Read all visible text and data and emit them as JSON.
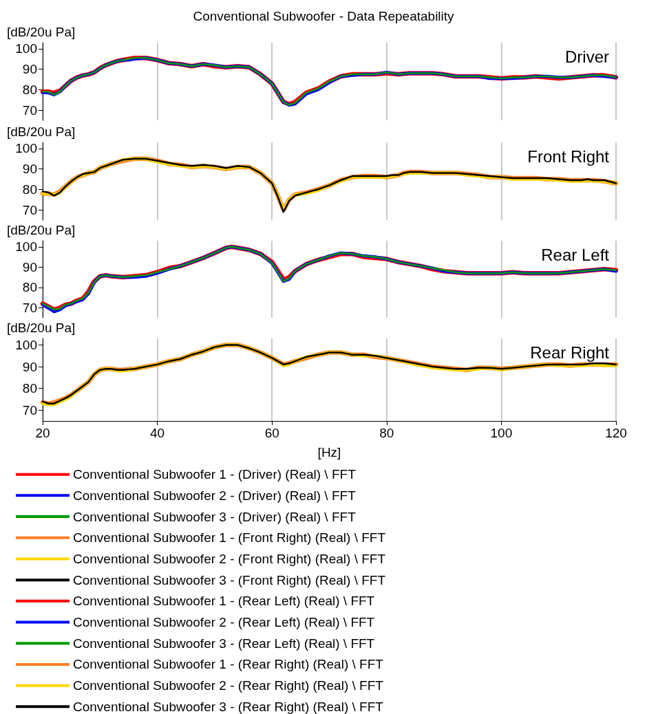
{
  "chart_data": [
    {
      "type": "line",
      "title": "Conventional Subwoofer - Data Repeatability",
      "ylabel": "[dB/20u Pa]",
      "annotations": [
        "Driver"
      ],
      "xlim": [
        20,
        120
      ],
      "xticks": [
        20,
        40,
        60,
        80,
        100,
        120
      ],
      "ylim": [
        65,
        103
      ],
      "yticks": [
        70,
        80,
        90,
        100
      ],
      "grid": "x",
      "legend": "bottom",
      "tick_labels": "y",
      "x": [
        20,
        21,
        22,
        23,
        24,
        25,
        26,
        27,
        28,
        29,
        30,
        31,
        32,
        33,
        34,
        35,
        36,
        38,
        40,
        42,
        44,
        46,
        48,
        50,
        52,
        54,
        56,
        58,
        60,
        62,
        63,
        64,
        66,
        68,
        70,
        72,
        74,
        76,
        78,
        80,
        82,
        84,
        86,
        88,
        90,
        92,
        94,
        96,
        98,
        100,
        102,
        104,
        106,
        108,
        110,
        112,
        114,
        116,
        118,
        120
      ],
      "series": [
        {
          "name": "Conventional Subwoofer 1 - (Driver) (Real) \\ FFT",
          "color": "#ff0000",
          "values": [
            79,
            79,
            78.5,
            79.5,
            82,
            84.5,
            86,
            87,
            87.5,
            88.5,
            90.5,
            92,
            93,
            94,
            94.5,
            95,
            95.5,
            95.5,
            94.5,
            93,
            92.5,
            91.5,
            92.5,
            91.5,
            91,
            91.5,
            91,
            87.5,
            83,
            74,
            73,
            74,
            78.5,
            80.5,
            84,
            86.5,
            87.5,
            87.5,
            87.5,
            88,
            87.5,
            88,
            88,
            88,
            87.5,
            86.5,
            86.5,
            86.5,
            86,
            85.5,
            86,
            86,
            86.5,
            86,
            85.5,
            86,
            86.5,
            87,
            87,
            86
          ]
        },
        {
          "name": "Conventional Subwoofer 2 - (Driver) (Real) \\ FFT",
          "color": "#0000ff",
          "values": [
            78.5,
            78.5,
            77.5,
            79,
            82,
            84.5,
            86,
            87,
            87.5,
            88.5,
            90.5,
            92,
            93,
            94,
            94.5,
            94.5,
            95,
            95.5,
            94.5,
            93,
            92.5,
            91.5,
            92.5,
            92,
            91,
            91.5,
            91,
            87.5,
            83,
            74,
            72.5,
            73,
            78,
            80,
            83.5,
            86.5,
            87,
            87.5,
            87.5,
            88.5,
            87.5,
            88,
            88,
            88,
            87.5,
            86.5,
            86.5,
            86.5,
            85.5,
            85.5,
            85.5,
            86,
            86.5,
            86.5,
            86,
            86,
            86.5,
            87,
            86.5,
            86
          ]
        },
        {
          "name": "Conventional Subwoofer 3 - (Driver) (Real) \\ FFT",
          "color": "#009a00",
          "values": [
            79,
            79,
            77.5,
            79,
            82,
            84.5,
            86,
            87,
            87.5,
            88.5,
            90.5,
            92,
            93,
            94,
            94.5,
            95,
            95.5,
            95.5,
            94.5,
            93,
            92.5,
            91.5,
            92.5,
            92,
            91,
            91.5,
            91,
            87.5,
            83,
            74,
            72.5,
            73.5,
            78.5,
            80.5,
            84,
            86.5,
            87.5,
            87.5,
            87.5,
            88.5,
            87.5,
            88,
            88,
            88,
            87.5,
            86.5,
            86.5,
            86.5,
            86,
            85.5,
            86,
            86,
            86.5,
            86.5,
            86,
            86,
            86.5,
            87,
            87,
            86
          ]
        }
      ]
    },
    {
      "type": "line",
      "ylabel": "[dB/20u Pa]",
      "annotations": [
        "Front Right"
      ],
      "xlim": [
        20,
        120
      ],
      "xticks": [
        20,
        40,
        60,
        80,
        100,
        120
      ],
      "ylim": [
        65,
        103
      ],
      "yticks": [
        70,
        80,
        90,
        100
      ],
      "grid": "x",
      "legend": "bottom",
      "tick_labels": "y",
      "x": [
        20,
        21,
        22,
        23,
        24,
        25,
        26,
        27,
        28,
        29,
        30,
        32,
        34,
        36,
        38,
        40,
        42,
        44,
        46,
        48,
        50,
        52,
        54,
        56,
        58,
        60,
        61,
        62,
        63,
        64,
        66,
        68,
        70,
        72,
        74,
        76,
        78,
        80,
        81,
        82,
        83,
        84,
        86,
        88,
        90,
        92,
        94,
        96,
        98,
        100,
        102,
        104,
        106,
        108,
        110,
        112,
        114,
        115,
        116,
        118,
        120
      ],
      "series": [
        {
          "name": "Conventional Subwoofer 1 - (Front Right) (Real) \\ FFT",
          "color": "#ff7f27",
          "values": [
            78,
            78,
            77.5,
            79,
            81.5,
            84,
            86,
            87,
            88,
            88.5,
            90.5,
            92.5,
            94,
            95,
            95,
            94,
            92.5,
            92,
            91,
            91.5,
            91,
            90,
            91,
            91,
            88,
            83,
            77,
            70,
            75,
            77.5,
            78.5,
            80,
            82,
            84.5,
            86,
            86.5,
            86.5,
            86,
            86.5,
            87,
            88,
            88.5,
            88.5,
            88,
            88,
            88,
            87.5,
            87,
            86,
            86,
            85.5,
            85.5,
            85.5,
            85,
            85,
            84.5,
            84.5,
            84.5,
            84.5,
            84,
            83
          ]
        },
        {
          "name": "Conventional Subwoofer 2 - (Front Right) (Real) \\ FFT",
          "color": "#ffd700",
          "values": [
            78,
            78,
            77.5,
            78.5,
            81.5,
            84,
            86,
            87,
            88,
            88.5,
            90.5,
            92.5,
            94.5,
            95,
            95,
            93.5,
            92.5,
            91.5,
            91,
            91.5,
            91,
            90,
            91,
            91,
            88,
            83,
            77,
            70,
            75,
            77.5,
            78,
            79.5,
            82,
            84,
            86,
            86,
            86,
            86,
            86.5,
            87,
            87.5,
            88,
            88,
            88,
            88,
            88,
            87,
            86.5,
            86,
            86,
            85,
            85,
            85,
            85,
            84.5,
            84,
            84,
            84.5,
            84,
            84,
            83
          ]
        },
        {
          "name": "Conventional Subwoofer 3 - (Front Right) (Real) \\ FFT",
          "color": "#000000",
          "values": [
            79,
            78.5,
            77,
            78.5,
            81.5,
            84,
            86,
            87.5,
            88,
            88.5,
            90.5,
            92.5,
            94.5,
            95,
            95,
            94,
            93,
            92,
            91.5,
            92,
            91.5,
            90.5,
            91.5,
            91,
            88,
            83,
            76.5,
            69,
            74.5,
            77,
            78.5,
            80,
            82,
            84.5,
            86.5,
            86.5,
            86.5,
            86.5,
            87,
            87,
            88,
            88.5,
            88.5,
            88,
            88,
            88,
            87.5,
            87,
            86.5,
            86,
            85.5,
            85.5,
            85.5,
            85.5,
            85,
            84.5,
            84.5,
            85,
            84.5,
            84.5,
            83
          ]
        }
      ]
    },
    {
      "type": "line",
      "ylabel": "[dB/20u Pa]",
      "annotations": [
        "Rear Left"
      ],
      "xlim": [
        20,
        120
      ],
      "xticks": [
        20,
        40,
        60,
        80,
        100,
        120
      ],
      "ylim": [
        65,
        103
      ],
      "yticks": [
        70,
        80,
        90,
        100
      ],
      "grid": "x",
      "legend": "bottom",
      "tick_labels": "y",
      "x": [
        20,
        22,
        23,
        24,
        25,
        26,
        27,
        28,
        29,
        30,
        31,
        32,
        34,
        36,
        38,
        40,
        42,
        44,
        46,
        48,
        50,
        52,
        53,
        54,
        56,
        58,
        60,
        62,
        63,
        64,
        66,
        68,
        70,
        72,
        74,
        76,
        78,
        80,
        82,
        84,
        86,
        88,
        90,
        92,
        94,
        96,
        98,
        100,
        102,
        104,
        106,
        108,
        110,
        112,
        114,
        116,
        118,
        120
      ],
      "series": [
        {
          "name": "Conventional Subwoofer 1 - (Rear Left) (Real) \\ FFT",
          "color": "#ff0000",
          "values": [
            72,
            69,
            70,
            71.5,
            72,
            73.5,
            74.5,
            78,
            83,
            85.5,
            86,
            85.5,
            85,
            85.5,
            86,
            87.5,
            89.5,
            90.5,
            92.5,
            94.5,
            97,
            99.5,
            100,
            99.5,
            98.5,
            96.5,
            92.5,
            84,
            85,
            88,
            91.5,
            93.5,
            95,
            96.5,
            96.5,
            95,
            94.5,
            94,
            92.5,
            91.5,
            90.5,
            89,
            88,
            87.5,
            87,
            87,
            87,
            87,
            87.5,
            87,
            87,
            87,
            87,
            87.5,
            88,
            88.5,
            89,
            88.5
          ]
        },
        {
          "name": "Conventional Subwoofer 2 - (Rear Left) (Real) \\ FFT",
          "color": "#0000ff",
          "values": [
            71.5,
            68,
            69,
            71,
            72,
            73,
            74,
            77,
            82.5,
            85.5,
            86,
            85.5,
            85,
            85,
            85.5,
            87,
            89,
            90.5,
            92.5,
            94.5,
            97,
            99.5,
            100,
            99.5,
            98.5,
            96.5,
            92,
            83,
            84,
            88,
            91.5,
            93.5,
            95.5,
            97,
            96.5,
            95.5,
            95,
            94,
            92.5,
            91.5,
            90.5,
            89.5,
            88,
            87.5,
            87,
            87,
            87,
            87,
            87.5,
            87,
            87,
            87,
            87,
            87.5,
            88,
            88.5,
            89,
            88
          ]
        },
        {
          "name": "Conventional Subwoofer 3 - (Rear Left) (Real) \\ FFT",
          "color": "#009a00",
          "values": [
            72,
            69,
            69.5,
            71.5,
            72,
            73.5,
            74.5,
            77.5,
            82.5,
            85.5,
            86,
            85.5,
            85,
            85.5,
            86,
            87.5,
            89,
            90.5,
            92.5,
            94.5,
            97,
            99.5,
            100,
            99.5,
            98.5,
            96.5,
            92,
            83,
            84.5,
            88,
            91.5,
            93.5,
            95.5,
            97,
            96.5,
            95.5,
            95,
            94,
            92.5,
            91.5,
            90.5,
            89.5,
            88.5,
            87.5,
            87,
            87,
            87,
            87,
            87.5,
            87,
            87,
            87,
            87,
            87.5,
            88,
            88.5,
            89,
            88.5
          ]
        }
      ]
    },
    {
      "type": "line",
      "ylabel": "[dB/20u Pa]",
      "xlabel": "[Hz]",
      "annotations": [
        "Rear Right"
      ],
      "xlim": [
        20,
        120
      ],
      "xticks": [
        20,
        40,
        60,
        80,
        100,
        120
      ],
      "ylim": [
        65,
        103
      ],
      "yticks": [
        70,
        80,
        90,
        100
      ],
      "grid": "x",
      "legend": "bottom",
      "x": [
        20,
        21,
        22,
        24,
        25,
        26,
        28,
        29,
        30,
        31,
        32,
        33,
        34,
        36,
        38,
        40,
        42,
        44,
        46,
        48,
        50,
        52,
        54,
        56,
        58,
        60,
        62,
        63,
        64,
        66,
        68,
        70,
        72,
        74,
        76,
        78,
        80,
        82,
        84,
        86,
        88,
        90,
        92,
        94,
        96,
        98,
        100,
        102,
        104,
        106,
        108,
        110,
        112,
        114,
        116,
        118,
        120
      ],
      "series": [
        {
          "name": "Conventional Subwoofer 1 - (Rear Right) (Real) \\ FFT",
          "color": "#ff7f27",
          "values": [
            73.5,
            73,
            73.5,
            75.5,
            77,
            79,
            83,
            86.5,
            88.5,
            89,
            89,
            88.5,
            88.5,
            89,
            90,
            91,
            92.5,
            93.5,
            95.5,
            97,
            99,
            100,
            100,
            98.5,
            96.5,
            94,
            91,
            91.5,
            92.5,
            94,
            95.5,
            96.5,
            96.5,
            95.5,
            95.5,
            94.5,
            94,
            93,
            92,
            91,
            90,
            89.5,
            89,
            88.5,
            89.5,
            89.5,
            89,
            89.5,
            90,
            90.5,
            91,
            91,
            90.5,
            91,
            91,
            91,
            91
          ]
        },
        {
          "name": "Conventional Subwoofer 2 - (Rear Right) (Real) \\ FFT",
          "color": "#ffd700",
          "values": [
            73,
            72.5,
            72.5,
            75,
            76.5,
            79,
            83,
            86.5,
            88.5,
            89,
            89,
            88,
            88,
            89,
            90,
            91,
            92.5,
            93.5,
            95.5,
            97,
            99,
            100,
            100,
            98.5,
            96.5,
            94,
            90.5,
            91,
            92.5,
            94.5,
            95.5,
            96.5,
            96.5,
            95.5,
            95,
            95,
            94,
            93,
            91.5,
            90.5,
            89.5,
            89,
            88.5,
            88.5,
            89,
            89.5,
            88.5,
            89.5,
            90,
            90.5,
            91,
            90.5,
            90.5,
            90.5,
            91,
            90.5,
            90.5
          ]
        },
        {
          "name": "Conventional Subwoofer 3 - (Rear Right) (Real) \\ FFT",
          "color": "#000000",
          "values": [
            74,
            73,
            73,
            75.5,
            77,
            79,
            83,
            86.5,
            88.5,
            89,
            89,
            88.5,
            88.5,
            89,
            90,
            91,
            92.5,
            93.5,
            95.5,
            97,
            99,
            100,
            100,
            98.5,
            96.5,
            94,
            91,
            91.5,
            92.5,
            94.5,
            95.5,
            96.5,
            96.5,
            95.5,
            95.5,
            95,
            94,
            93,
            92,
            91,
            90,
            89.5,
            89,
            89,
            89.5,
            89.5,
            89,
            89.5,
            90,
            90.5,
            91,
            91,
            91,
            91,
            91.5,
            91.5,
            91
          ]
        }
      ]
    }
  ]
}
